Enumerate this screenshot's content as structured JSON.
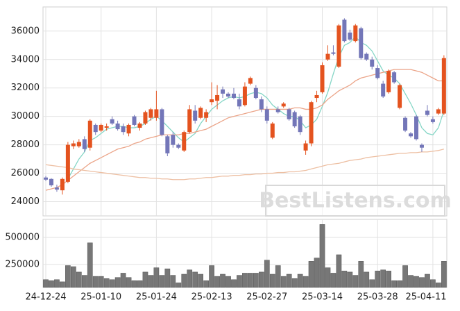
{
  "chart_data": [
    {
      "type": "candlestick",
      "categories": [
        "24-12-24",
        null,
        null,
        null,
        null,
        null,
        null,
        null,
        null,
        null,
        "25-01-10",
        null,
        null,
        null,
        null,
        null,
        null,
        null,
        null,
        null,
        "25-01-24",
        null,
        null,
        null,
        null,
        null,
        null,
        null,
        null,
        null,
        "25-02-13",
        null,
        null,
        null,
        null,
        null,
        null,
        null,
        null,
        null,
        "25-02-27",
        null,
        null,
        null,
        null,
        null,
        null,
        null,
        null,
        null,
        "25-03-14",
        null,
        null,
        null,
        null,
        null,
        null,
        null,
        null,
        null,
        "25-03-28",
        null,
        null,
        null,
        null,
        null,
        null,
        null,
        null,
        null,
        "25-04-11",
        null,
        null
      ],
      "open": [
        25700,
        25600,
        25000,
        24800,
        25400,
        27900,
        27900,
        28400,
        27800,
        29400,
        29000,
        29200,
        29800,
        29500,
        29300,
        28800,
        30000,
        29200,
        29500,
        29900,
        29900,
        30500,
        28600,
        28700,
        28000,
        27600,
        28900,
        30400,
        29900,
        29900,
        31000,
        31100,
        31900,
        31600,
        31600,
        31200,
        30800,
        32300,
        32000,
        31200,
        30500,
        28500,
        30500,
        30700,
        30500,
        30300,
        30000,
        27600,
        28100,
        31300,
        31700,
        34000,
        34500,
        33500,
        36800,
        35900,
        35300,
        36200,
        34400,
        34000,
        33400,
        32300,
        31700,
        33100,
        30600,
        29900,
        28800,
        30000,
        28000,
        30400,
        29800,
        30200,
        30200
      ],
      "high": [
        25800,
        25650,
        25200,
        25700,
        28200,
        28300,
        28400,
        28600,
        29800,
        29500,
        29500,
        29500,
        30000,
        29700,
        29500,
        29500,
        30100,
        29600,
        30400,
        30600,
        31800,
        30600,
        28700,
        28900,
        28100,
        29000,
        30800,
        30800,
        30700,
        30500,
        32400,
        32200,
        32100,
        31700,
        32000,
        31600,
        32400,
        32800,
        32200,
        31400,
        30700,
        29600,
        30700,
        31000,
        30600,
        30400,
        30100,
        28300,
        31100,
        31800,
        33800,
        35000,
        35000,
        36500,
        36900,
        36100,
        36500,
        36300,
        34500,
        34200,
        33600,
        32500,
        33300,
        33200,
        32300,
        30000,
        28900,
        30100,
        28100,
        30800,
        30000,
        30600,
        34300
      ],
      "low": [
        25450,
        25050,
        24700,
        24500,
        25300,
        27700,
        27800,
        27500,
        27600,
        28700,
        28900,
        29000,
        29400,
        29000,
        28700,
        28600,
        29300,
        29000,
        29400,
        29700,
        29700,
        28600,
        27200,
        27800,
        27700,
        27500,
        28800,
        29500,
        29800,
        29600,
        30800,
        30500,
        31300,
        31300,
        31200,
        30500,
        30700,
        32200,
        31200,
        30300,
        29500,
        28400,
        30200,
        30600,
        29700,
        29200,
        28700,
        27300,
        27900,
        31000,
        31600,
        33900,
        34300,
        33400,
        35200,
        35300,
        35200,
        34000,
        33900,
        33300,
        32600,
        31300,
        31600,
        32300,
        30500,
        28900,
        28500,
        28300,
        27500,
        30000,
        29500,
        30100,
        30100
      ],
      "close": [
        25550,
        25150,
        24850,
        25600,
        28000,
        28100,
        28200,
        27700,
        29700,
        28900,
        29400,
        29300,
        29500,
        29100,
        28900,
        29400,
        29400,
        29500,
        30300,
        30500,
        30500,
        28700,
        27400,
        28000,
        27800,
        28900,
        30500,
        29700,
        30600,
        30300,
        31200,
        31500,
        31600,
        31400,
        31300,
        30700,
        32100,
        32700,
        31300,
        30500,
        29700,
        29500,
        30300,
        30900,
        29800,
        29300,
        28900,
        28100,
        31000,
        31500,
        33600,
        34400,
        34400,
        36400,
        35300,
        35400,
        36400,
        34100,
        34000,
        33500,
        32700,
        31400,
        33200,
        32400,
        32200,
        29000,
        28600,
        28400,
        27800,
        30100,
        29600,
        30500,
        34100
      ],
      "up_color": "#e4531f",
      "down_color": "#7376b8",
      "series": [
        {
          "color": "#85d6c6",
          "values": [
            null,
            null,
            null,
            null,
            25600,
            26300,
            27000,
            27500,
            28300,
            28500,
            28800,
            29100,
            29200,
            29300,
            29300,
            29200,
            29200,
            29300,
            29500,
            29800,
            30000,
            29700,
            29300,
            28900,
            28500,
            28200,
            28500,
            28800,
            29500,
            30000,
            30500,
            30800,
            31100,
            31300,
            31400,
            31300,
            31400,
            31600,
            31700,
            31600,
            31300,
            30800,
            30500,
            30200,
            30000,
            30000,
            29700,
            29200,
            29400,
            29800,
            30700,
            31700,
            33000,
            34200,
            35000,
            35200,
            35600,
            35200,
            35000,
            34600,
            33900,
            33200,
            32900,
            32700,
            32300,
            31600,
            30900,
            30100,
            29200,
            28800,
            28700,
            29200,
            30400
          ]
        },
        {
          "color": "#eba488",
          "values": [
            24800,
            24900,
            25000,
            25200,
            25500,
            25800,
            26100,
            26400,
            26700,
            26900,
            27100,
            27300,
            27500,
            27700,
            27800,
            27900,
            28100,
            28200,
            28400,
            28500,
            28600,
            28700,
            28700,
            28700,
            28700,
            28800,
            28800,
            28900,
            29000,
            29100,
            29300,
            29500,
            29700,
            29900,
            30000,
            30100,
            30200,
            30300,
            30400,
            30500,
            30500,
            30500,
            30500,
            30500,
            30500,
            30600,
            30600,
            30500,
            30500,
            30600,
            30800,
            31200,
            31500,
            31800,
            32000,
            32200,
            32500,
            32700,
            32800,
            32900,
            33000,
            33100,
            33200,
            33300,
            33300,
            33300,
            33300,
            33200,
            33100,
            32900,
            32700,
            32500,
            32500
          ]
        },
        {
          "color": "#edbfa2",
          "values": [
            26600,
            26550,
            26500,
            26450,
            26400,
            26300,
            26250,
            26200,
            26150,
            26100,
            26050,
            26000,
            25950,
            25900,
            25850,
            25800,
            25750,
            25700,
            25700,
            25650,
            25650,
            25600,
            25600,
            25550,
            25550,
            25550,
            25600,
            25600,
            25650,
            25700,
            25700,
            25750,
            25800,
            25800,
            25850,
            25850,
            25900,
            25900,
            25950,
            25950,
            26000,
            26000,
            26050,
            26050,
            26100,
            26100,
            26150,
            26200,
            26300,
            26400,
            26500,
            26600,
            26650,
            26700,
            26800,
            26900,
            26950,
            27000,
            27100,
            27150,
            27200,
            27250,
            27300,
            27350,
            27400,
            27400,
            27450,
            27450,
            27500,
            27500,
            27550,
            27600,
            27700
          ]
        }
      ],
      "ylim": [
        23000,
        37700
      ],
      "yticks": [
        24000,
        26000,
        28000,
        30000,
        32000,
        34000,
        36000
      ],
      "grid": true
    },
    {
      "type": "bar",
      "color": "#777777",
      "values": [
        110000,
        100000,
        110000,
        90000,
        240000,
        230000,
        180000,
        150000,
        450000,
        140000,
        140000,
        120000,
        110000,
        130000,
        170000,
        130000,
        100000,
        100000,
        180000,
        150000,
        220000,
        150000,
        210000,
        150000,
        80000,
        160000,
        200000,
        180000,
        160000,
        100000,
        240000,
        140000,
        160000,
        140000,
        110000,
        150000,
        170000,
        170000,
        170000,
        180000,
        290000,
        160000,
        240000,
        140000,
        160000,
        120000,
        160000,
        140000,
        280000,
        310000,
        620000,
        220000,
        170000,
        340000,
        190000,
        180000,
        150000,
        280000,
        180000,
        110000,
        190000,
        200000,
        190000,
        100000,
        100000,
        240000,
        150000,
        140000,
        130000,
        160000,
        110000,
        80000,
        280000
      ],
      "ylim": [
        38000,
        667000
      ],
      "yticks": [
        250000,
        500000
      ],
      "grid": true
    }
  ],
  "watermark": "BestListens.com"
}
